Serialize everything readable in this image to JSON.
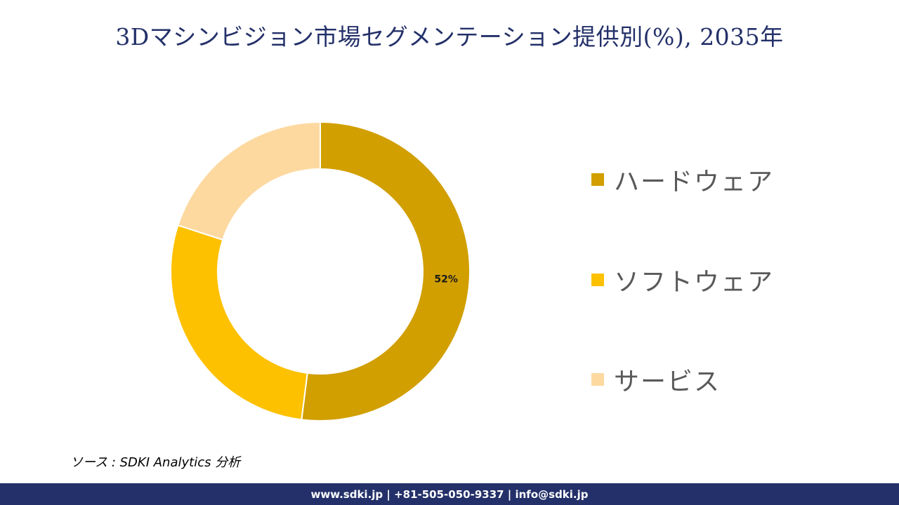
{
  "title": "3Dマシンビジョン市場セグメンテーション提供別(%), 2035年",
  "chart_data": {
    "type": "pie",
    "donut": true,
    "title": "3Dマシンビジョン市場セグメンテーション提供別(%), 2035年",
    "categories": [
      "ハードウェア",
      "ソフトウェア",
      "サービス"
    ],
    "values": [
      52,
      28,
      20
    ],
    "colors": [
      "#D19F00",
      "#FDC100",
      "#FDD9A0"
    ],
    "data_labels": [
      "52%",
      "",
      ""
    ],
    "legend_position": "right",
    "start_angle_deg": 0,
    "direction": "clockwise"
  },
  "legend": {
    "items": [
      {
        "label": "ハードウェア",
        "color": "#D19F00"
      },
      {
        "label": "ソフトウェア",
        "color": "#FDC100"
      },
      {
        "label": "サービス",
        "color": "#FDD9A0"
      }
    ]
  },
  "source": "ソース : SDKI Analytics 分析",
  "footer": "www.sdki.jp | +81-505-050-9337 | info@sdki.jp",
  "colors": {
    "navy": "#233069",
    "legend_text": "#595959"
  }
}
